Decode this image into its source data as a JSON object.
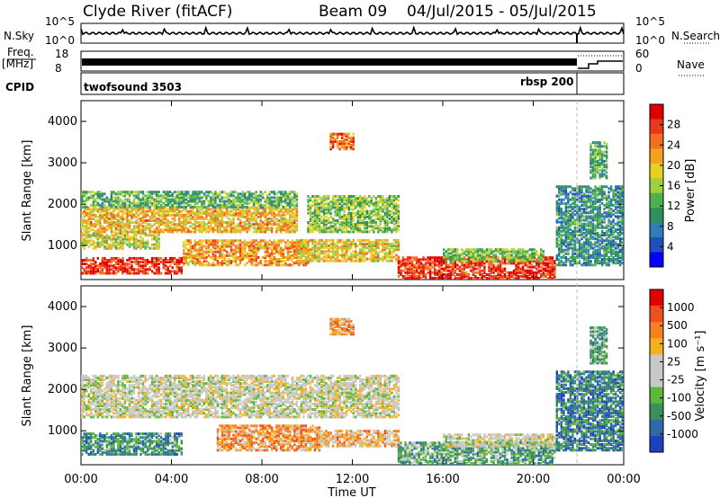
{
  "header": {
    "station": "Clyde River (fitACF)",
    "beam": "Beam 09",
    "date_range": "04/Jul/2015 - 05/Jul/2015"
  },
  "status_panels": {
    "nsky_label": "N.Sky",
    "nsearch_label": "N.Search",
    "nsky_ticks": [
      "10^5",
      "10^0"
    ],
    "nsearch_ticks": [
      "10^5",
      "10^0"
    ],
    "freq_label_top": "Freq.",
    "freq_label_unit": "[MHz]",
    "freq_ticks": [
      "18",
      "8"
    ],
    "nave_label": "Nave",
    "nave_ticks": [
      "60",
      "0"
    ],
    "cpid_label": "CPID",
    "cpid_segments": [
      "twofsound 3503",
      "rbsp 200"
    ]
  },
  "chart_data": [
    {
      "type": "heatmap",
      "title": "",
      "xlabel": "",
      "ylabel": "Slant Range [km]",
      "x_ticks": [
        "00:00",
        "04:00",
        "08:00",
        "12:00",
        "16:00",
        "20:00",
        "00:00"
      ],
      "y_ticks": [
        1000,
        2000,
        3000,
        4000
      ],
      "ylim": [
        180,
        4500
      ],
      "colorbar": {
        "label": "Power [dB]",
        "ticks": [
          4,
          8,
          12,
          16,
          20,
          24,
          28
        ],
        "colors": [
          "#0000ff",
          "#1f4fbf",
          "#2e7db5",
          "#2f8f5a",
          "#4fb04f",
          "#9fd03f",
          "#e8d020",
          "#f5a020",
          "#f07020",
          "#e83a1a",
          "#e00000"
        ]
      },
      "regions": [
        {
          "t0": 0.0,
          "t1": 4.5,
          "r0": 300,
          "r1": 700,
          "v": 0.9
        },
        {
          "t0": 0.0,
          "t1": 3.5,
          "r0": 900,
          "r1": 1300,
          "v": 0.55
        },
        {
          "t0": 0.0,
          "t1": 9.5,
          "r0": 1300,
          "r1": 1900,
          "v": 0.65
        },
        {
          "t0": 0.0,
          "t1": 9.5,
          "r0": 1900,
          "r1": 2300,
          "v": 0.4
        },
        {
          "t0": 4.5,
          "t1": 10.0,
          "r0": 500,
          "r1": 1100,
          "v": 0.7
        },
        {
          "t0": 10.0,
          "t1": 14.0,
          "r0": 1300,
          "r1": 2200,
          "v": 0.45
        },
        {
          "t0": 9.5,
          "t1": 14.0,
          "r0": 600,
          "r1": 1100,
          "v": 0.6
        },
        {
          "t0": 14.0,
          "t1": 21.0,
          "r0": 180,
          "r1": 700,
          "v": 0.9
        },
        {
          "t0": 16.0,
          "t1": 20.5,
          "r0": 600,
          "r1": 900,
          "v": 0.45
        },
        {
          "t0": 21.0,
          "t1": 24.0,
          "r0": 500,
          "r1": 2400,
          "v": 0.3
        },
        {
          "t0": 22.5,
          "t1": 23.3,
          "r0": 2600,
          "r1": 3500,
          "v": 0.35
        },
        {
          "t0": 11.0,
          "t1": 12.0,
          "r0": 3300,
          "r1": 3700,
          "v": 0.8
        }
      ]
    },
    {
      "type": "heatmap",
      "title": "",
      "xlabel": "Time UT",
      "ylabel": "Slant Range [km]",
      "x_ticks": [
        "00:00",
        "04:00",
        "08:00",
        "12:00",
        "16:00",
        "20:00",
        "00:00"
      ],
      "y_ticks": [
        1000,
        2000,
        3000,
        4000
      ],
      "ylim": [
        180,
        4500
      ],
      "colorbar": {
        "label": "Velocity [m s⁻¹]",
        "ticks": [
          "1000",
          "500",
          "100",
          "25",
          "-25",
          "-100",
          "-500",
          "-1000"
        ],
        "colors": [
          "#2040c0",
          "#2d6aa8",
          "#3a8f5a",
          "#5cb83a",
          "#c8c8c8",
          "#c8c8c8",
          "#f5b020",
          "#f58020",
          "#f05020",
          "#e00000"
        ]
      },
      "regions": [
        {
          "t0": 0.0,
          "t1": 14.0,
          "r0": 1300,
          "r1": 2300,
          "v": 0.5
        },
        {
          "t0": 0.0,
          "t1": 4.5,
          "r0": 400,
          "r1": 900,
          "v": 0.25
        },
        {
          "t0": 6.0,
          "t1": 10.5,
          "r0": 500,
          "r1": 1100,
          "v": 0.7
        },
        {
          "t0": 10.5,
          "t1": 14.0,
          "r0": 600,
          "r1": 1000,
          "v": 0.65
        },
        {
          "t0": 14.0,
          "t1": 21.0,
          "r0": 180,
          "r1": 700,
          "v": 0.3
        },
        {
          "t0": 16.0,
          "t1": 21.0,
          "r0": 600,
          "r1": 900,
          "v": 0.5
        },
        {
          "t0": 21.0,
          "t1": 24.0,
          "r0": 500,
          "r1": 2400,
          "v": 0.2
        },
        {
          "t0": 11.0,
          "t1": 12.0,
          "r0": 3300,
          "r1": 3700,
          "v": 0.7
        },
        {
          "t0": 22.5,
          "t1": 23.3,
          "r0": 2600,
          "r1": 3500,
          "v": 0.3
        }
      ]
    }
  ]
}
